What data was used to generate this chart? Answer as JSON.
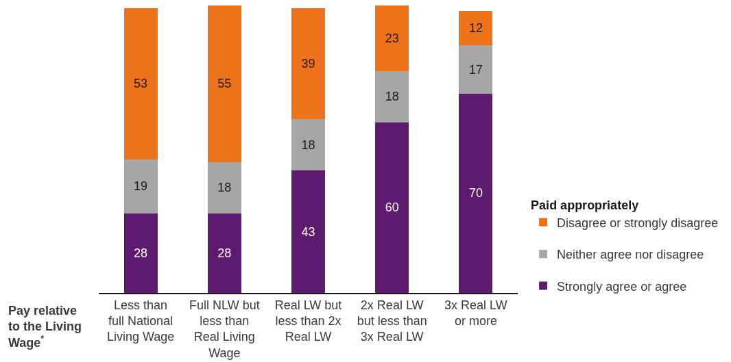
{
  "chart_data": {
    "type": "bar",
    "stacked": true,
    "categories": [
      "Less than full National Living Wage",
      "Full NLW but less than Real Living Wage",
      "Real LW but less than 2x Real LW",
      "2x Real LW but less than 3x Real LW",
      "3x Real LW or more"
    ],
    "series": [
      {
        "name": "Strongly agree or agree",
        "color": "#5e1a6e",
        "values": [
          28,
          28,
          43,
          60,
          70
        ]
      },
      {
        "name": "Neither agree nor disagree",
        "color": "#a6a6a5",
        "values": [
          19,
          18,
          18,
          18,
          17
        ]
      },
      {
        "name": "Disagree or strongly disagree",
        "color": "#ee7219",
        "values": [
          53,
          55,
          39,
          23,
          12
        ]
      }
    ],
    "data_labels": true,
    "legend": "right",
    "legend_title": "Paid appropriately",
    "xlabel": "Pay relative to the Living Wage$^{*}$",
    "tick_labels": "x"
  }
}
